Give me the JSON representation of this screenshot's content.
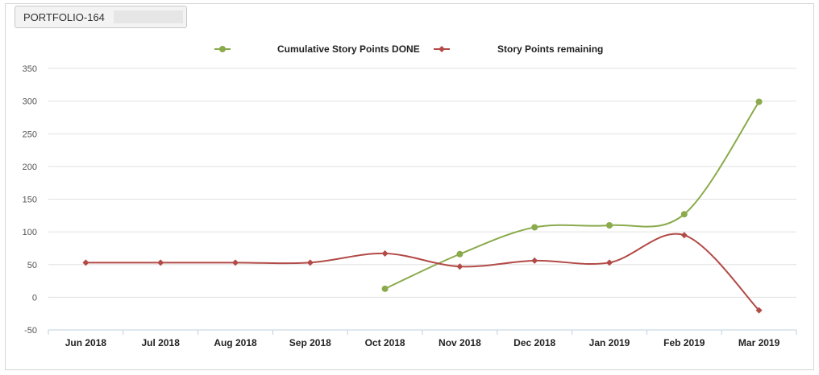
{
  "header": {
    "selector_value": "PORTFOLIO-164"
  },
  "chart_data": {
    "type": "line",
    "categories": [
      "Jun 2018",
      "Jul 2018",
      "Aug 2018",
      "Sep 2018",
      "Oct 2018",
      "Nov 2018",
      "Dec 2018",
      "Jan 2019",
      "Feb 2019",
      "Mar 2019"
    ],
    "series": [
      {
        "name": "Cumulative Story Points DONE",
        "color": "#8aaa4b",
        "marker": "circle",
        "values": [
          null,
          null,
          null,
          null,
          13,
          66,
          107,
          110,
          127,
          299
        ]
      },
      {
        "name": "Story Points remaining",
        "color": "#b24a46",
        "marker": "diamond",
        "values": [
          53,
          53,
          53,
          53,
          67,
          47,
          56,
          53,
          95,
          -20
        ]
      }
    ],
    "ylim": [
      -50,
      350
    ],
    "yticks": [
      -50,
      0,
      50,
      100,
      150,
      200,
      250,
      300,
      350
    ],
    "grid": true,
    "legend_position": "top-center",
    "title": "",
    "xlabel": "",
    "ylabel": ""
  }
}
